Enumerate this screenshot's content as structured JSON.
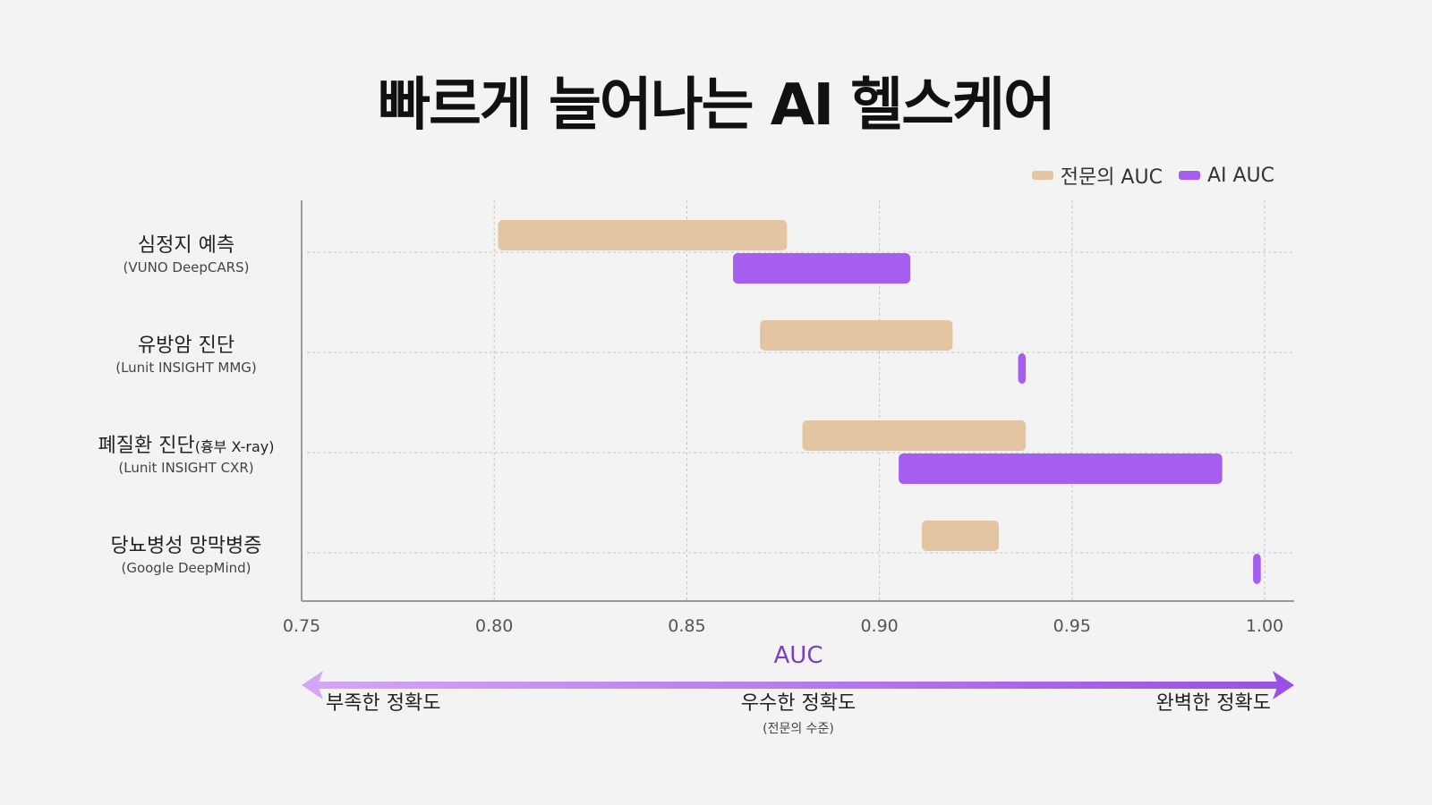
{
  "title": "빠르게 늘어나는 AI 헬스케어",
  "legend": {
    "expert": {
      "label": "전문의 AUC",
      "color": "#e4c5a1"
    },
    "ai": {
      "label": "AI AUC",
      "color": "#a65ef0"
    }
  },
  "colors": {
    "expert": "#e4c5a1",
    "ai": "#a65ef0",
    "axis": "#9a9a9a",
    "grid": "#c4c4c4",
    "arrow_start": "#d4a6f5",
    "arrow_end": "#9b4fe6"
  },
  "categories": [
    {
      "name": "심정지 예측",
      "suffix": "",
      "sub": "(VUNO DeepCARS)"
    },
    {
      "name": "유방암 진단",
      "suffix": "",
      "sub": "(Lunit INSIGHT MMG)"
    },
    {
      "name": "폐질환 진단",
      "suffix": "(흉부 X-ray)",
      "sub": "(Lunit INSIGHT CXR)"
    },
    {
      "name": "당뇨병성 망막병증",
      "suffix": "",
      "sub": "(Google DeepMind)"
    }
  ],
  "chart_data": {
    "type": "bar",
    "orientation": "horizontal-range",
    "xlabel": "AUC",
    "xlim": [
      0.75,
      1.0
    ],
    "xticks": [
      "0.75",
      "0.80",
      "0.85",
      "0.90",
      "0.95",
      "1.00"
    ],
    "grid": true,
    "legend_position": "top-right",
    "series": [
      {
        "name": "전문의 AUC",
        "ranges": [
          [
            0.801,
            0.876
          ],
          [
            0.869,
            0.919
          ],
          [
            0.88,
            0.938
          ],
          [
            0.911,
            0.931
          ]
        ]
      },
      {
        "name": "AI AUC",
        "ranges": [
          [
            0.862,
            0.908
          ],
          [
            0.936,
            0.938
          ],
          [
            0.905,
            0.989
          ],
          [
            0.997,
            0.999
          ]
        ]
      }
    ]
  },
  "scale": {
    "left": "부족한 정확도",
    "middle": "우수한 정확도",
    "middle_sub": "(전문의 수준)",
    "right": "완벽한 정확도"
  }
}
